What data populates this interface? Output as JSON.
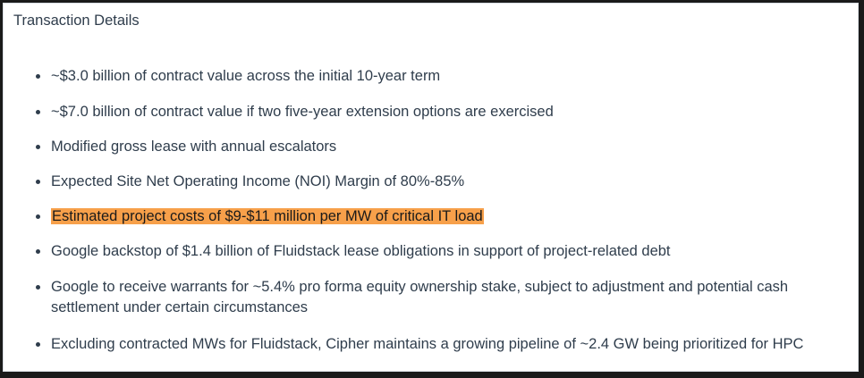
{
  "section": {
    "title": "Transaction Details"
  },
  "bullets": [
    {
      "text": "~$3.0 billion of contract value across the initial 10-year term",
      "highlighted": false
    },
    {
      "text": "~$7.0 billion of contract value if two five-year extension options are exercised",
      "highlighted": false
    },
    {
      "text": "Modified gross lease with annual escalators",
      "highlighted": false
    },
    {
      "text": "Expected Site Net Operating Income (NOI) Margin of 80%-85%",
      "highlighted": false
    },
    {
      "text": "Estimated project costs of $9-$11 million per MW of critical IT load",
      "highlighted": true
    },
    {
      "text": "Google backstop of $1.4 billion of Fluidstack lease obligations in support of project-related debt",
      "highlighted": false
    },
    {
      "text": "Google to receive warrants for ~5.4% pro forma equity ownership stake, subject to adjustment and potential cash settlement under certain circumstances",
      "highlighted": false
    },
    {
      "text": "Excluding contracted MWs for Fluidstack, Cipher maintains a growing pipeline of ~2.4 GW being prioritized for HPC",
      "highlighted": false
    }
  ],
  "colors": {
    "highlight": "#f7a04a",
    "text": "#2f3d4c"
  }
}
